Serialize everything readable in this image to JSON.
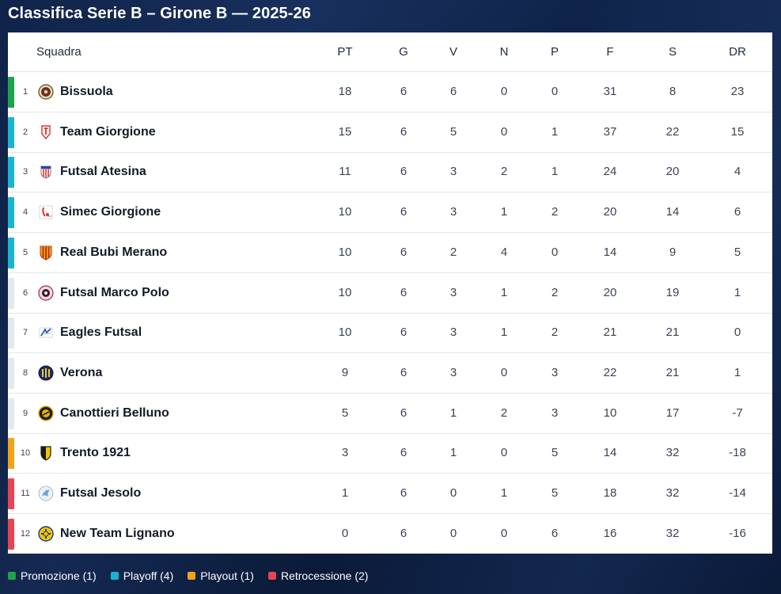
{
  "title": "Classifica Serie B – Girone B — 2025-26",
  "columns": {
    "team": "Squadra",
    "pt": "PT",
    "g": "G",
    "v": "V",
    "n": "N",
    "p": "P",
    "f": "F",
    "s": "S",
    "dr": "DR"
  },
  "zone_colors": {
    "promo": "#1fa34a",
    "playoff": "#1bb3d1",
    "playout": "#f0a31a",
    "retro": "#e64552",
    "none": "#e4e7ec"
  },
  "rows": [
    {
      "pos": "1",
      "team": "Bissuola",
      "pt": "18",
      "g": "6",
      "v": "6",
      "n": "0",
      "p": "0",
      "f": "31",
      "s": "8",
      "dr": "23",
      "zone": "promo",
      "logo": "bissuola-logo"
    },
    {
      "pos": "2",
      "team": "Team Giorgione",
      "pt": "15",
      "g": "6",
      "v": "5",
      "n": "0",
      "p": "1",
      "f": "37",
      "s": "22",
      "dr": "15",
      "zone": "playoff",
      "logo": "team-giorgione-logo"
    },
    {
      "pos": "3",
      "team": "Futsal Atesina",
      "pt": "11",
      "g": "6",
      "v": "3",
      "n": "2",
      "p": "1",
      "f": "24",
      "s": "20",
      "dr": "4",
      "zone": "playoff",
      "logo": "futsal-atesina-logo"
    },
    {
      "pos": "4",
      "team": "Simec Giorgione",
      "pt": "10",
      "g": "6",
      "v": "3",
      "n": "1",
      "p": "2",
      "f": "20",
      "s": "14",
      "dr": "6",
      "zone": "playoff",
      "logo": "simec-giorgione-logo"
    },
    {
      "pos": "5",
      "team": "Real Bubi Merano",
      "pt": "10",
      "g": "6",
      "v": "2",
      "n": "4",
      "p": "0",
      "f": "14",
      "s": "9",
      "dr": "5",
      "zone": "playoff",
      "logo": "real-bubi-merano-logo"
    },
    {
      "pos": "6",
      "team": "Futsal Marco Polo",
      "pt": "10",
      "g": "6",
      "v": "3",
      "n": "1",
      "p": "2",
      "f": "20",
      "s": "19",
      "dr": "1",
      "zone": "none",
      "logo": "futsal-marco-polo-logo"
    },
    {
      "pos": "7",
      "team": "Eagles Futsal",
      "pt": "10",
      "g": "6",
      "v": "3",
      "n": "1",
      "p": "2",
      "f": "21",
      "s": "21",
      "dr": "0",
      "zone": "none",
      "logo": "eagles-futsal-logo"
    },
    {
      "pos": "8",
      "team": "Verona",
      "pt": "9",
      "g": "6",
      "v": "3",
      "n": "0",
      "p": "3",
      "f": "22",
      "s": "21",
      "dr": "1",
      "zone": "none",
      "logo": "verona-logo"
    },
    {
      "pos": "9",
      "team": "Canottieri Belluno",
      "pt": "5",
      "g": "6",
      "v": "1",
      "n": "2",
      "p": "3",
      "f": "10",
      "s": "17",
      "dr": "-7",
      "zone": "none",
      "logo": "canottieri-belluno-logo"
    },
    {
      "pos": "10",
      "team": "Trento 1921",
      "pt": "3",
      "g": "6",
      "v": "1",
      "n": "0",
      "p": "5",
      "f": "14",
      "s": "32",
      "dr": "-18",
      "zone": "playout",
      "logo": "trento-1921-logo"
    },
    {
      "pos": "11",
      "team": "Futsal Jesolo",
      "pt": "1",
      "g": "6",
      "v": "0",
      "n": "1",
      "p": "5",
      "f": "18",
      "s": "32",
      "dr": "-14",
      "zone": "retro",
      "logo": "futsal-jesolo-logo"
    },
    {
      "pos": "12",
      "team": "New Team Lignano",
      "pt": "0",
      "g": "6",
      "v": "0",
      "n": "0",
      "p": "6",
      "f": "16",
      "s": "32",
      "dr": "-16",
      "zone": "retro",
      "logo": "new-team-lignano-logo"
    }
  ],
  "legend": [
    {
      "label": "Promozione (1)",
      "zone": "promo"
    },
    {
      "label": "Playoff (4)",
      "zone": "playoff"
    },
    {
      "label": "Playout (1)",
      "zone": "playout"
    },
    {
      "label": "Retrocessione (2)",
      "zone": "retro"
    }
  ]
}
